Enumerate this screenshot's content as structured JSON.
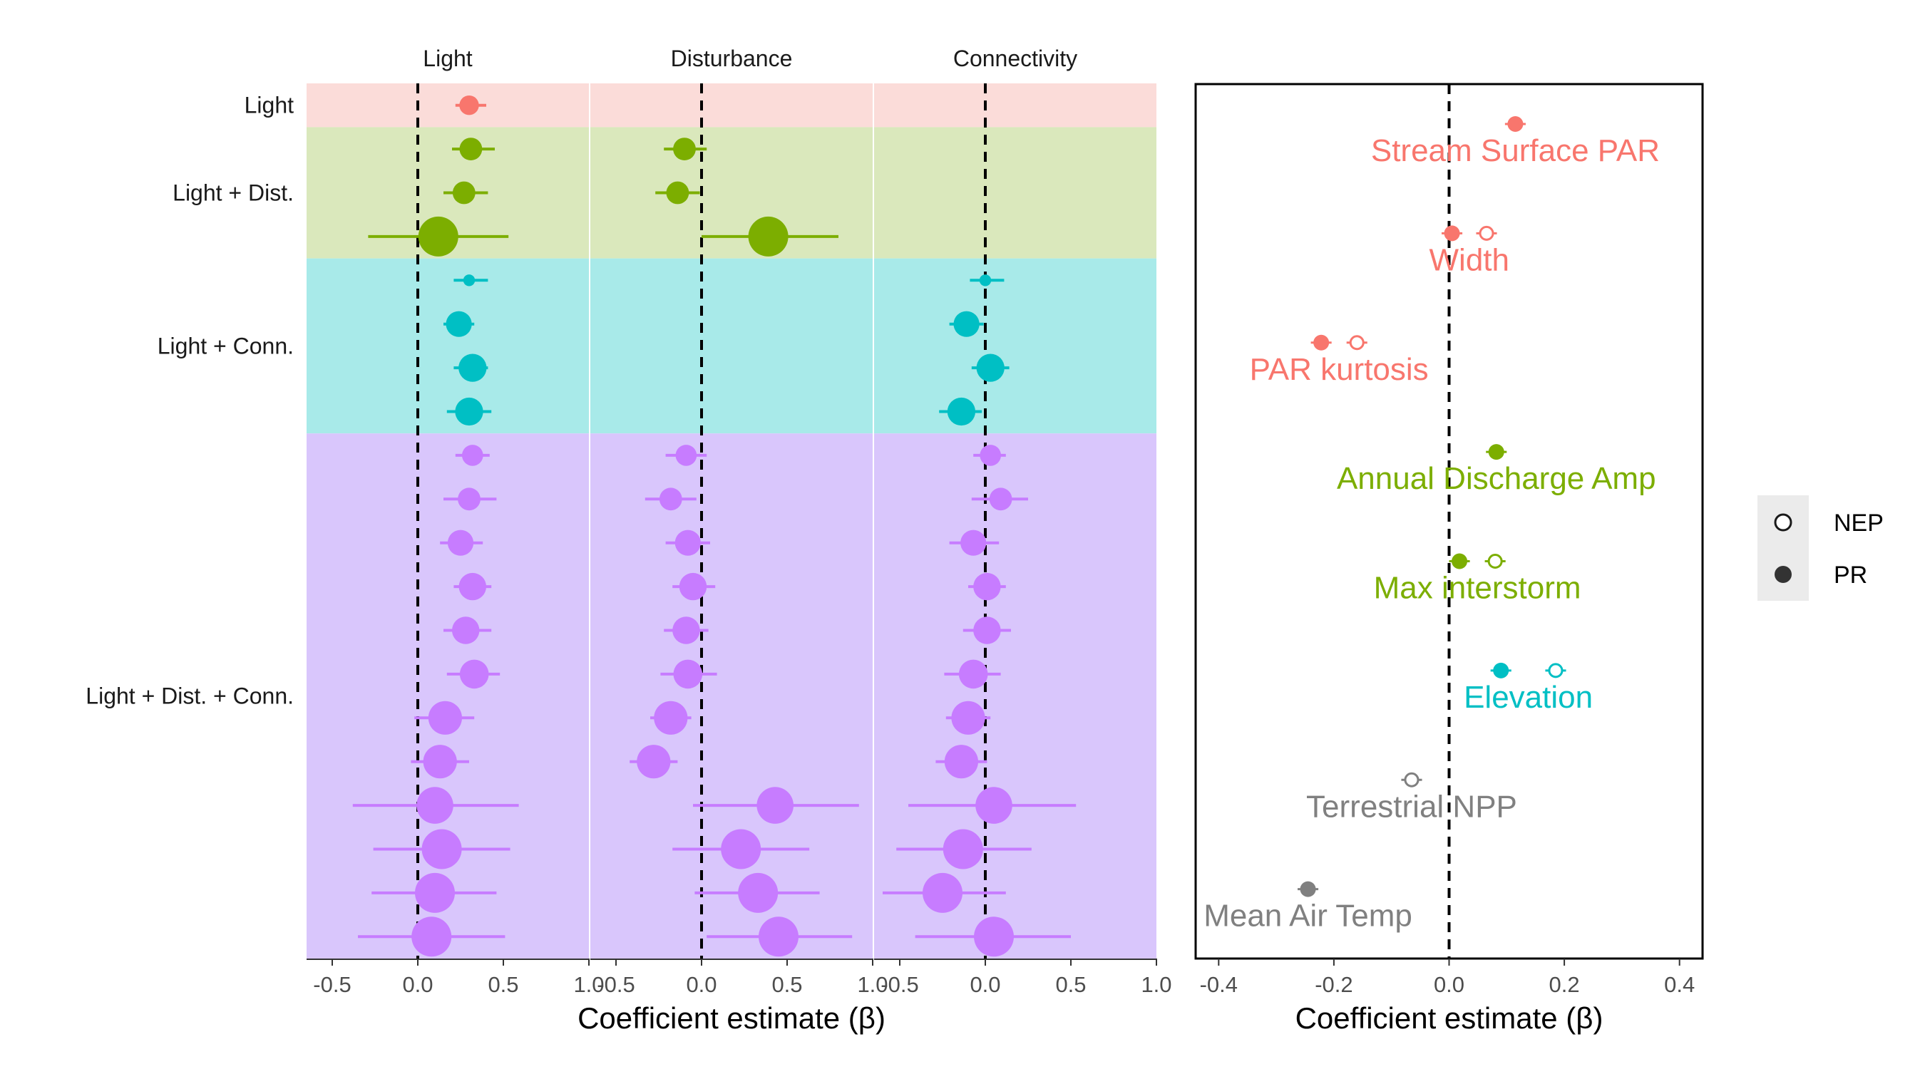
{
  "chart_data": [
    {
      "type": "forest",
      "panels": [
        "Light",
        "Disturbance",
        "Connectivity"
      ],
      "xlabel": "Coefficient estimate (β)",
      "xlim": [
        -0.65,
        1.0
      ],
      "xticks": [
        "-0.5",
        "0.0",
        "0.5",
        "1.0"
      ],
      "groups": [
        {
          "label": "Light",
          "color": "#F8766D",
          "fill": "#FBDCD9",
          "rows": 1
        },
        {
          "label": "Light + Dist.",
          "color": "#7CAE00",
          "fill": "#DAE8BC",
          "rows": 3
        },
        {
          "label": "Light + Conn.",
          "color": "#00BFC4",
          "fill": "#A8EAE9",
          "rows": 4
        },
        {
          "label": "Light + Dist. + Conn.",
          "color": "#C77CFF",
          "fill": "#D9C6FC",
          "rows": 12
        }
      ],
      "rows": [
        {
          "group": 0,
          "w": 0.35,
          "Light": [
            0.3,
            0.22,
            0.4
          ],
          "Disturbance": null,
          "Connectivity": null
        },
        {
          "group": 1,
          "w": 0.45,
          "Light": [
            0.31,
            0.2,
            0.45
          ],
          "Disturbance": [
            -0.1,
            -0.22,
            0.03
          ],
          "Connectivity": null
        },
        {
          "group": 1,
          "w": 0.45,
          "Light": [
            0.27,
            0.15,
            0.41
          ],
          "Disturbance": [
            -0.14,
            -0.27,
            -0.01
          ],
          "Connectivity": null
        },
        {
          "group": 1,
          "w": 1.0,
          "Light": [
            0.12,
            -0.29,
            0.53
          ],
          "Disturbance": [
            0.39,
            0.0,
            0.8
          ],
          "Connectivity": null
        },
        {
          "group": 2,
          "w": 0.1,
          "Light": [
            0.3,
            0.21,
            0.41
          ],
          "Disturbance": null,
          "Connectivity": [
            0.0,
            -0.09,
            0.11
          ]
        },
        {
          "group": 2,
          "w": 0.55,
          "Light": [
            0.24,
            0.15,
            0.33
          ],
          "Disturbance": null,
          "Connectivity": [
            -0.11,
            -0.21,
            -0.01
          ]
        },
        {
          "group": 2,
          "w": 0.62,
          "Light": [
            0.32,
            0.21,
            0.41
          ],
          "Disturbance": null,
          "Connectivity": [
            0.03,
            -0.08,
            0.14
          ]
        },
        {
          "group": 2,
          "w": 0.62,
          "Light": [
            0.3,
            0.17,
            0.43
          ],
          "Disturbance": null,
          "Connectivity": [
            -0.14,
            -0.27,
            -0.02
          ]
        },
        {
          "group": 3,
          "w": 0.4,
          "Light": [
            0.32,
            0.22,
            0.42
          ],
          "Disturbance": [
            -0.09,
            -0.21,
            0.03
          ],
          "Connectivity": [
            0.03,
            -0.07,
            0.12
          ]
        },
        {
          "group": 3,
          "w": 0.45,
          "Light": [
            0.3,
            0.15,
            0.46
          ],
          "Disturbance": [
            -0.18,
            -0.33,
            -0.03
          ],
          "Connectivity": [
            0.09,
            -0.08,
            0.25
          ]
        },
        {
          "group": 3,
          "w": 0.55,
          "Light": [
            0.25,
            0.13,
            0.38
          ],
          "Disturbance": [
            -0.08,
            -0.21,
            0.05
          ],
          "Connectivity": [
            -0.07,
            -0.21,
            0.08
          ]
        },
        {
          "group": 3,
          "w": 0.6,
          "Light": [
            0.32,
            0.21,
            0.43
          ],
          "Disturbance": [
            -0.05,
            -0.17,
            0.08
          ],
          "Connectivity": [
            0.01,
            -0.1,
            0.12
          ]
        },
        {
          "group": 3,
          "w": 0.6,
          "Light": [
            0.28,
            0.15,
            0.43
          ],
          "Disturbance": [
            -0.09,
            -0.22,
            0.04
          ],
          "Connectivity": [
            0.01,
            -0.13,
            0.15
          ]
        },
        {
          "group": 3,
          "w": 0.65,
          "Light": [
            0.33,
            0.17,
            0.48
          ],
          "Disturbance": [
            -0.08,
            -0.24,
            0.09
          ],
          "Connectivity": [
            -0.07,
            -0.24,
            0.09
          ]
        },
        {
          "group": 3,
          "w": 0.8,
          "Light": [
            0.16,
            -0.02,
            0.33
          ],
          "Disturbance": [
            -0.18,
            -0.3,
            -0.06
          ],
          "Connectivity": [
            -0.1,
            -0.23,
            0.03
          ]
        },
        {
          "group": 3,
          "w": 0.8,
          "Light": [
            0.13,
            -0.04,
            0.3
          ],
          "Disturbance": [
            -0.28,
            -0.42,
            -0.14
          ],
          "Connectivity": [
            -0.14,
            -0.29,
            0.01
          ]
        },
        {
          "group": 3,
          "w": 0.9,
          "Light": [
            0.1,
            -0.38,
            0.59
          ],
          "Disturbance": [
            0.43,
            -0.05,
            0.92
          ],
          "Connectivity": [
            0.05,
            -0.45,
            0.53
          ]
        },
        {
          "group": 3,
          "w": 1.0,
          "Light": [
            0.14,
            -0.26,
            0.54
          ],
          "Disturbance": [
            0.23,
            -0.17,
            0.63
          ],
          "Connectivity": [
            -0.13,
            -0.52,
            0.27
          ]
        },
        {
          "group": 3,
          "w": 1.0,
          "Light": [
            0.1,
            -0.27,
            0.46
          ],
          "Disturbance": [
            0.33,
            -0.04,
            0.69
          ],
          "Connectivity": [
            -0.25,
            -0.6,
            0.12
          ]
        },
        {
          "group": 3,
          "w": 1.0,
          "Light": [
            0.08,
            -0.35,
            0.51
          ],
          "Disturbance": [
            0.45,
            0.03,
            0.88
          ],
          "Connectivity": [
            0.05,
            -0.41,
            0.5
          ]
        }
      ]
    },
    {
      "type": "forest",
      "xlabel": "Coefficient estimate (β)",
      "xlim": [
        -0.44,
        0.44
      ],
      "xticks": [
        "-0.4",
        "-0.2",
        "0.0",
        "0.2",
        "0.4"
      ],
      "legend": {
        "position": "right",
        "entries": [
          "NEP",
          "PR"
        ]
      },
      "series": [
        {
          "label": "Stream Surface PAR",
          "color": "#F8766D",
          "PR": 0.115,
          "NEP": null
        },
        {
          "label": "Width",
          "color": "#F8766D",
          "PR": 0.005,
          "NEP": 0.065
        },
        {
          "label": "PAR kurtosis",
          "color": "#F8766D",
          "PR": -0.222,
          "NEP": -0.16
        },
        {
          "label": "Annual Discharge Amp",
          "color": "#7CAE00",
          "PR": 0.082,
          "NEP": null
        },
        {
          "label": "Max interstorm",
          "color": "#7CAE00",
          "PR": 0.018,
          "NEP": 0.08
        },
        {
          "label": "Elevation",
          "color": "#00BFC4",
          "PR": 0.09,
          "NEP": 0.185
        },
        {
          "label": "Terrestrial NPP",
          "color": "#808080",
          "PR": null,
          "NEP": -0.065
        },
        {
          "label": "Mean Air Temp",
          "color": "#808080",
          "PR": -0.245,
          "NEP": null
        }
      ]
    }
  ]
}
